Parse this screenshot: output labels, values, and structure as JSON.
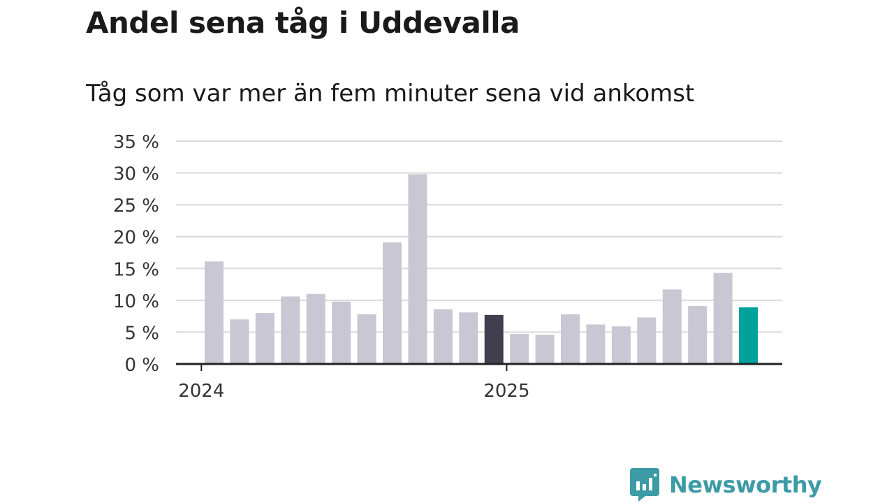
{
  "chart_data": {
    "type": "bar",
    "title": "Andel sena tåg i Uddevalla",
    "subtitle": "Tåg som var mer än fem minuter sena vid ankomst",
    "xlabel": "",
    "ylabel": "",
    "ylim": [
      0,
      35
    ],
    "y_ticks": [
      "0 %",
      "5 %",
      "10 %",
      "15 %",
      "20 %",
      "25 %",
      "30 %",
      "35 %"
    ],
    "x_tick_labels": [
      {
        "label": "2024",
        "category": "2024-01"
      },
      {
        "label": "2025",
        "category": "2025-01"
      }
    ],
    "categories": [
      "2024-01",
      "2024-02",
      "2024-03",
      "2024-04",
      "2024-05",
      "2024-06",
      "2024-07",
      "2024-08",
      "2024-09",
      "2024-10",
      "2024-11",
      "2024-12",
      "2025-01",
      "2025-02",
      "2025-03",
      "2025-04",
      "2025-05",
      "2025-06",
      "2025-07",
      "2025-08",
      "2025-09",
      "2025-10"
    ],
    "values": [
      16.1,
      7.0,
      8.0,
      10.6,
      11.0,
      9.8,
      7.8,
      19.1,
      29.8,
      8.6,
      8.1,
      7.7,
      4.7,
      4.6,
      7.8,
      6.2,
      5.9,
      7.3,
      11.7,
      9.1,
      14.3,
      8.9
    ],
    "colors": {
      "default": "#c8c7d3",
      "highlight_dark": "#3f3f4f",
      "highlight_latest": "#00a19a",
      "grid": "#d9d9d9",
      "axis": "#222222"
    },
    "highlight": {
      "2024-12": "highlight_dark",
      "2025-10": "highlight_latest"
    },
    "grid": true,
    "legend": "none"
  },
  "brand": {
    "name": "Newsworthy",
    "color": "#3d9ba5",
    "icon": "newsworthy-logo-icon"
  }
}
